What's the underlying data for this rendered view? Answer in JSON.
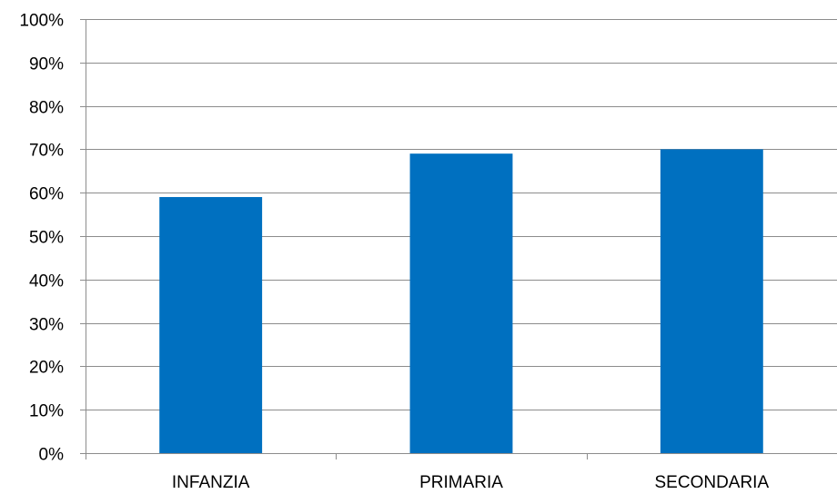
{
  "chart_data": {
    "type": "bar",
    "title": "",
    "xlabel": "",
    "ylabel": "",
    "categories": [
      "INFANZIA",
      "PRIMARIA",
      "SECONDARIA"
    ],
    "values": [
      59,
      69,
      70
    ],
    "unit": "%",
    "ylim": [
      0,
      100
    ],
    "ytick_labels": [
      "0%",
      "10%",
      "20%",
      "30%",
      "40%",
      "50%",
      "60%",
      "70%",
      "80%",
      "90%",
      "100%"
    ],
    "grid": true,
    "legend": "none",
    "colors": {
      "bar": "#0070C0"
    }
  }
}
